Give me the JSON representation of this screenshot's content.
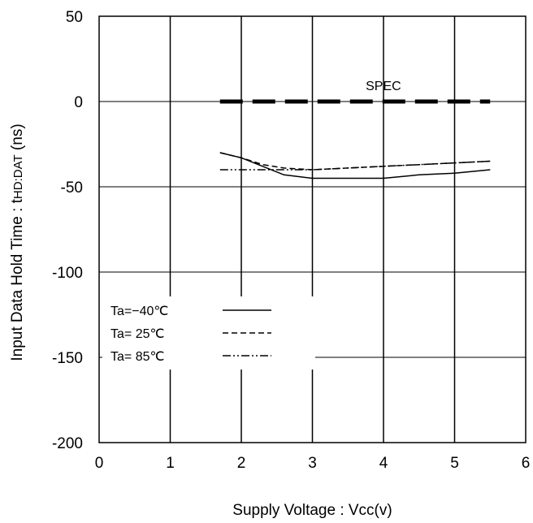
{
  "chart_data": {
    "type": "line",
    "xlabel": "Supply Voltage : Vcc(v)",
    "ylabel_main": "Input Data Hold Time : t",
    "ylabel_sub": "HD:DAT",
    "ylabel_unit": " (ns)",
    "xlim": [
      0,
      6
    ],
    "ylim": [
      -200,
      50
    ],
    "x_ticks": [
      0,
      1,
      2,
      3,
      4,
      5,
      6
    ],
    "y_ticks": [
      50,
      0,
      -50,
      -100,
      -150,
      -200
    ],
    "x_tick_labels": [
      "0",
      "1",
      "2",
      "3",
      "4",
      "5",
      "6"
    ],
    "y_tick_labels": [
      "50",
      "0",
      "-50",
      "-100",
      "-150",
      "-200"
    ],
    "grid": true,
    "legend_position": "bottom-left",
    "spec": {
      "label": "SPEC",
      "x": [
        1.7,
        5.5
      ],
      "y": [
        0,
        0
      ],
      "color": "#000000"
    },
    "series": [
      {
        "name": "Ta=−40℃",
        "dash": "solid",
        "color": "#000000",
        "x": [
          1.7,
          2.0,
          2.3,
          2.6,
          3.0,
          3.5,
          4.0,
          4.5,
          5.0,
          5.5
        ],
        "y": [
          -30,
          -33,
          -38,
          -43,
          -45,
          -45,
          -45,
          -43,
          -42,
          -40
        ]
      },
      {
        "name": "Ta= 25℃",
        "dash": "dashed",
        "color": "#000000",
        "x": [
          1.7,
          2.0,
          2.3,
          2.6,
          3.0,
          3.5,
          4.0,
          4.5,
          5.0,
          5.5
        ],
        "y": [
          -30,
          -33,
          -37,
          -39,
          -40,
          -39,
          -38,
          -37,
          -36,
          -35
        ]
      },
      {
        "name": "Ta= 85℃",
        "dash": "dashdot",
        "color": "#000000",
        "x": [
          1.7,
          2.0,
          2.5,
          3.0,
          3.5,
          4.0,
          4.5,
          5.0,
          5.5
        ],
        "y": [
          -40,
          -40,
          -40,
          -40,
          -39,
          -38,
          -37,
          -36,
          -35
        ]
      }
    ]
  }
}
